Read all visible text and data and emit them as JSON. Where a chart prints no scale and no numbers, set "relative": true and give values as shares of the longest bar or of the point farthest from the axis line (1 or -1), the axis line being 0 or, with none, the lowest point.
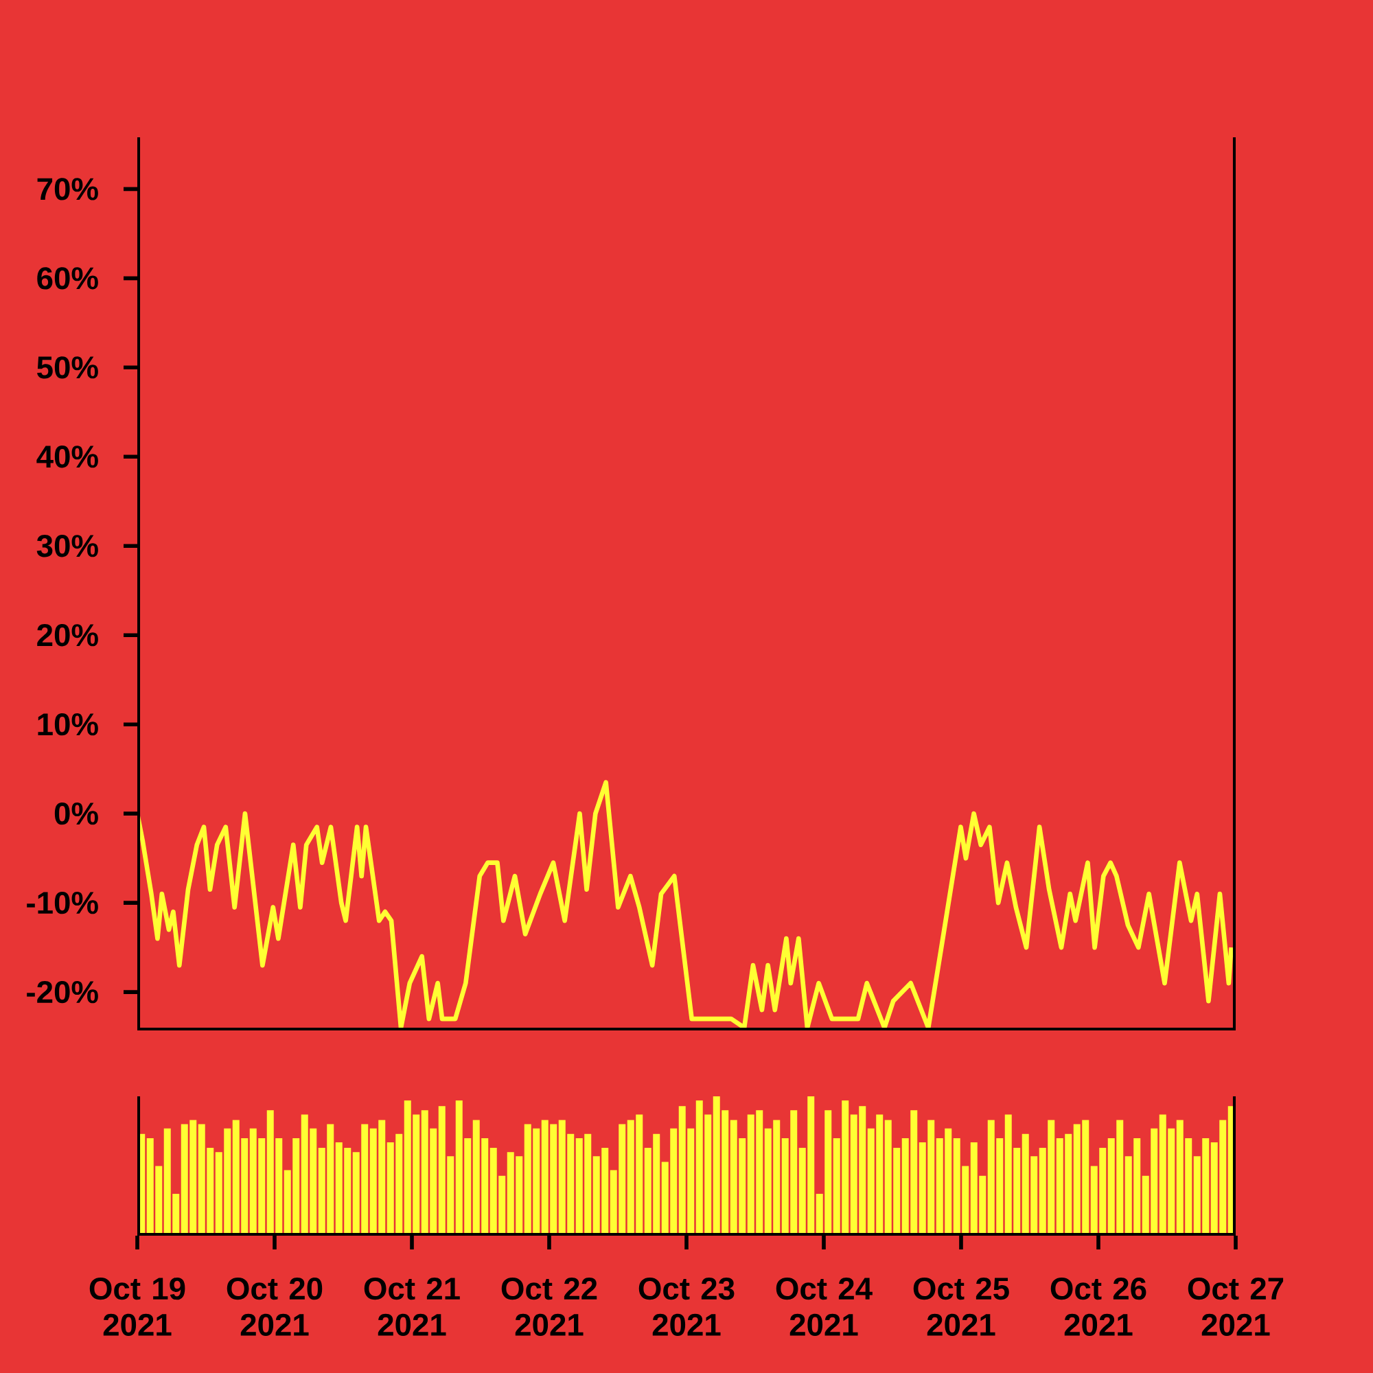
{
  "chart_data": [
    {
      "type": "line",
      "color": "#ffff33",
      "xlim": [
        "2021-10-19",
        "2021-10-27"
      ],
      "ylim": [
        -24.3,
        75.8
      ],
      "tick_labels": "y",
      "yticks": [
        {
          "value": -20,
          "label": "-20%"
        },
        {
          "value": -10,
          "label": "-10%"
        },
        {
          "value": 0,
          "label": "0%"
        },
        {
          "value": 10,
          "label": "10%"
        },
        {
          "value": 20,
          "label": "20%"
        },
        {
          "value": 30,
          "label": "30%"
        },
        {
          "value": 40,
          "label": "40%"
        },
        {
          "value": 50,
          "label": "50%"
        },
        {
          "value": 60,
          "label": "60%"
        },
        {
          "value": 70,
          "label": "70%"
        }
      ],
      "x": [
        "2021-10-19T00:00",
        "2021-10-19T00:55",
        "2021-10-19T02:27",
        "2021-10-19T03:32",
        "2021-10-19T04:18",
        "2021-10-19T05:31",
        "2021-10-19T06:17",
        "2021-10-19T07:21",
        "2021-10-19T08:53",
        "2021-10-19T10:25",
        "2021-10-19T11:38",
        "2021-10-19T12:43",
        "2021-10-19T13:57",
        "2021-10-19T15:27",
        "2021-10-19T17:00",
        "2021-10-19T18:50",
        "2021-10-19T21:53",
        "2021-10-19T23:44",
        "2021-10-20T00:39",
        "2021-10-20T03:16",
        "2021-10-20T04:29",
        "2021-10-20T05:33",
        "2021-10-20T07:24",
        "2021-10-20T08:18",
        "2021-10-20T09:50",
        "2021-10-20T11:40",
        "2021-10-20T12:26",
        "2021-10-20T14:25",
        "2021-10-20T15:12",
        "2021-10-20T15:58",
        "2021-10-20T18:16",
        "2021-10-20T19:19",
        "2021-10-20T20:24",
        "2021-10-20T22:05",
        "2021-10-20T23:37",
        "2021-10-21T01:45",
        "2021-10-21T02:59",
        "2021-10-21T04:31",
        "2021-10-21T05:17",
        "2021-10-21T07:35",
        "2021-10-21T09:24",
        "2021-10-21T11:51",
        "2021-10-21T13:15",
        "2021-10-21T14:56",
        "2021-10-21T16:00",
        "2021-10-21T18:00",
        "2021-10-21T19:49",
        "2021-10-21T22:26",
        "2021-10-22T00:43",
        "2021-10-22T02:43",
        "2021-10-22T05:20",
        "2021-10-22T06:33",
        "2021-10-22T08:05",
        "2021-10-22T09:55",
        "2021-10-22T12:03",
        "2021-10-22T14:12",
        "2021-10-22T15:45",
        "2021-10-22T18:01",
        "2021-10-22T19:34",
        "2021-10-22T21:52",
        "2021-10-23T00:55",
        "2021-10-23T03:59",
        "2021-10-23T07:48",
        "2021-10-23T10:06",
        "2021-10-23T11:38",
        "2021-10-23T13:11",
        "2021-10-23T14:14",
        "2021-10-23T15:27",
        "2021-10-23T17:27",
        "2021-10-23T18:13",
        "2021-10-23T19:36",
        "2021-10-23T21:07",
        "2021-10-23T23:07",
        "2021-10-24T01:25",
        "2021-10-24T06:00",
        "2021-10-24T07:32",
        "2021-10-24T10:36",
        "2021-10-24T12:09",
        "2021-10-24T15:12",
        "2021-10-24T18:16",
        "2021-10-24T20:33",
        "2021-10-24T23:56",
        "2021-10-25T00:50",
        "2021-10-25T02:14",
        "2021-10-25T03:27",
        "2021-10-25T04:58",
        "2021-10-25T06:30",
        "2021-10-25T08:02",
        "2021-10-25T09:35",
        "2021-10-25T11:24",
        "2021-10-25T13:42",
        "2021-10-25T15:23",
        "2021-10-25T17:31",
        "2021-10-25T19:03",
        "2021-10-25T20:00",
        "2021-10-25T22:08",
        "2021-10-25T23:21",
        "2021-10-26T00:53",
        "2021-10-26T02:07",
        "2021-10-26T03:10",
        "2021-10-26T05:10",
        "2021-10-26T07:00",
        "2021-10-26T08:50",
        "2021-10-26T11:35",
        "2021-10-26T14:12",
        "2021-10-26T16:12",
        "2021-10-26T17:15",
        "2021-10-26T19:15",
        "2021-10-26T21:14",
        "2021-10-26T22:47",
        "2021-10-26T23:14"
      ],
      "values": [
        0,
        -3,
        -9,
        -14,
        -9,
        -13,
        -11,
        -17,
        -8.5,
        -3.5,
        -1.5,
        -8.5,
        -3.5,
        -1.5,
        -10.5,
        0,
        -17,
        -10.5,
        -14,
        -3.5,
        -10.5,
        -3.5,
        -1.5,
        -5.5,
        -1.5,
        -10,
        -12,
        -1.5,
        -7,
        -1.5,
        -12,
        -11,
        -12,
        -24,
        -19,
        -16,
        -23,
        -19,
        -23,
        -23,
        -19,
        -7,
        -5.5,
        -5.5,
        -12,
        -7,
        -13.5,
        -9,
        -5.5,
        -12,
        0,
        -8.5,
        0,
        3.5,
        -10.5,
        -7,
        -10.5,
        -17,
        -9,
        -7,
        -23,
        -23,
        -23,
        -24,
        -17,
        -22,
        -17,
        -22,
        -14,
        -19,
        -14,
        -24,
        -19,
        -23,
        -23,
        -19,
        -24,
        -21,
        -19,
        -24,
        -15,
        -1.5,
        -5,
        0,
        -3.5,
        -1.5,
        -10,
        -5.5,
        -10.5,
        -15,
        -1.5,
        -8.5,
        -15,
        -9,
        -12,
        -5.5,
        -15,
        -7,
        -5.5,
        -7,
        -12.5,
        -15,
        -9,
        -19,
        -5.5,
        -12,
        -9,
        -21,
        -9,
        -19,
        -15
      ]
    },
    {
      "type": "bar",
      "color": "#ffff33",
      "relative": true,
      "xlim": [
        "2021-10-19",
        "2021-10-27"
      ],
      "tick_labels": "x",
      "xticks": [
        {
          "value": "2021-10-19",
          "label": "Oct 19 2021"
        },
        {
          "value": "2021-10-20",
          "label": "Oct 20 2021"
        },
        {
          "value": "2021-10-21",
          "label": "Oct 21 2021"
        },
        {
          "value": "2021-10-22",
          "label": "Oct 22 2021"
        },
        {
          "value": "2021-10-23",
          "label": "Oct 23 2021"
        },
        {
          "value": "2021-10-24",
          "label": "Oct 24 2021"
        },
        {
          "value": "2021-10-25",
          "label": "Oct 25 2021"
        },
        {
          "value": "2021-10-26",
          "label": "Oct 26 2021"
        },
        {
          "value": "2021-10-27",
          "label": "Oct 27 2021"
        }
      ],
      "x": [
        "2021-10-19T00:45",
        "2021-10-19T02:15",
        "2021-10-19T03:45",
        "2021-10-19T05:15",
        "2021-10-19T06:45",
        "2021-10-19T08:15",
        "2021-10-19T09:45",
        "2021-10-19T11:15",
        "2021-10-19T12:45",
        "2021-10-19T14:15",
        "2021-10-19T15:45",
        "2021-10-19T17:15",
        "2021-10-19T18:45",
        "2021-10-19T20:15",
        "2021-10-19T21:45",
        "2021-10-19T23:15",
        "2021-10-20T00:45",
        "2021-10-20T02:15",
        "2021-10-20T03:45",
        "2021-10-20T05:15",
        "2021-10-20T06:45",
        "2021-10-20T08:15",
        "2021-10-20T09:45",
        "2021-10-20T11:15",
        "2021-10-20T12:45",
        "2021-10-20T14:15",
        "2021-10-20T15:45",
        "2021-10-20T17:15",
        "2021-10-20T18:45",
        "2021-10-20T20:15",
        "2021-10-20T21:45",
        "2021-10-20T23:15",
        "2021-10-21T00:45",
        "2021-10-21T02:15",
        "2021-10-21T03:45",
        "2021-10-21T05:15",
        "2021-10-21T06:45",
        "2021-10-21T08:15",
        "2021-10-21T09:45",
        "2021-10-21T11:15",
        "2021-10-21T12:45",
        "2021-10-21T14:15",
        "2021-10-21T15:45",
        "2021-10-21T17:15",
        "2021-10-21T18:45",
        "2021-10-21T20:15",
        "2021-10-21T21:45",
        "2021-10-21T23:15",
        "2021-10-22T00:45",
        "2021-10-22T02:15",
        "2021-10-22T03:45",
        "2021-10-22T05:15",
        "2021-10-22T06:45",
        "2021-10-22T08:15",
        "2021-10-22T09:45",
        "2021-10-22T11:15",
        "2021-10-22T12:45",
        "2021-10-22T14:15",
        "2021-10-22T15:45",
        "2021-10-22T17:15",
        "2021-10-22T18:45",
        "2021-10-22T20:15",
        "2021-10-22T21:45",
        "2021-10-22T23:15",
        "2021-10-23T00:45",
        "2021-10-23T02:15",
        "2021-10-23T03:45",
        "2021-10-23T05:15",
        "2021-10-23T06:45",
        "2021-10-23T08:15",
        "2021-10-23T09:45",
        "2021-10-23T11:15",
        "2021-10-23T12:45",
        "2021-10-23T14:15",
        "2021-10-23T15:45",
        "2021-10-23T17:15",
        "2021-10-23T18:45",
        "2021-10-23T20:15",
        "2021-10-23T21:45",
        "2021-10-23T23:15",
        "2021-10-24T00:45",
        "2021-10-24T02:15",
        "2021-10-24T03:45",
        "2021-10-24T05:15",
        "2021-10-24T06:45",
        "2021-10-24T08:15",
        "2021-10-24T09:45",
        "2021-10-24T11:15",
        "2021-10-24T12:45",
        "2021-10-24T14:15",
        "2021-10-24T15:45",
        "2021-10-24T17:15",
        "2021-10-24T18:45",
        "2021-10-24T20:15",
        "2021-10-24T21:45",
        "2021-10-24T23:15",
        "2021-10-25T00:45",
        "2021-10-25T02:15",
        "2021-10-25T03:45",
        "2021-10-25T05:15",
        "2021-10-25T06:45",
        "2021-10-25T08:15",
        "2021-10-25T09:45",
        "2021-10-25T11:15",
        "2021-10-25T12:45",
        "2021-10-25T14:15",
        "2021-10-25T15:45",
        "2021-10-25T17:15",
        "2021-10-25T18:45",
        "2021-10-25T20:15",
        "2021-10-25T21:45",
        "2021-10-25T23:15",
        "2021-10-26T00:45",
        "2021-10-26T02:15",
        "2021-10-26T03:45",
        "2021-10-26T05:15",
        "2021-10-26T06:45",
        "2021-10-26T08:15",
        "2021-10-26T09:45",
        "2021-10-26T11:15",
        "2021-10-26T12:45",
        "2021-10-26T14:15",
        "2021-10-26T15:45",
        "2021-10-26T17:15",
        "2021-10-26T18:45",
        "2021-10-26T20:15",
        "2021-10-26T21:45",
        "2021-10-26T23:15"
      ],
      "values": [
        0.73,
        0.7,
        0.5,
        0.77,
        0.3,
        0.8,
        0.83,
        0.8,
        0.63,
        0.6,
        0.77,
        0.83,
        0.7,
        0.77,
        0.7,
        0.9,
        0.7,
        0.47,
        0.7,
        0.87,
        0.77,
        0.63,
        0.8,
        0.67,
        0.63,
        0.6,
        0.8,
        0.77,
        0.83,
        0.67,
        0.73,
        0.97,
        0.87,
        0.9,
        0.77,
        0.93,
        0.57,
        0.97,
        0.7,
        0.83,
        0.7,
        0.63,
        0.43,
        0.6,
        0.57,
        0.8,
        0.77,
        0.83,
        0.8,
        0.83,
        0.73,
        0.7,
        0.73,
        0.57,
        0.63,
        0.47,
        0.8,
        0.83,
        0.87,
        0.63,
        0.73,
        0.53,
        0.77,
        0.93,
        0.77,
        0.97,
        0.87,
        1.0,
        0.9,
        0.83,
        0.7,
        0.87,
        0.9,
        0.77,
        0.83,
        0.7,
        0.9,
        0.63,
        1.0,
        0.3,
        0.9,
        0.7,
        0.97,
        0.87,
        0.93,
        0.77,
        0.87,
        0.83,
        0.63,
        0.7,
        0.9,
        0.67,
        0.83,
        0.7,
        0.77,
        0.7,
        0.5,
        0.67,
        0.43,
        0.83,
        0.7,
        0.87,
        0.63,
        0.73,
        0.57,
        0.63,
        0.83,
        0.7,
        0.73,
        0.8,
        0.83,
        0.5,
        0.63,
        0.7,
        0.83,
        0.57,
        0.7,
        0.43,
        0.77,
        0.87,
        0.77,
        0.83,
        0.7,
        0.57,
        0.7,
        0.67,
        0.83,
        0.93
      ]
    }
  ]
}
